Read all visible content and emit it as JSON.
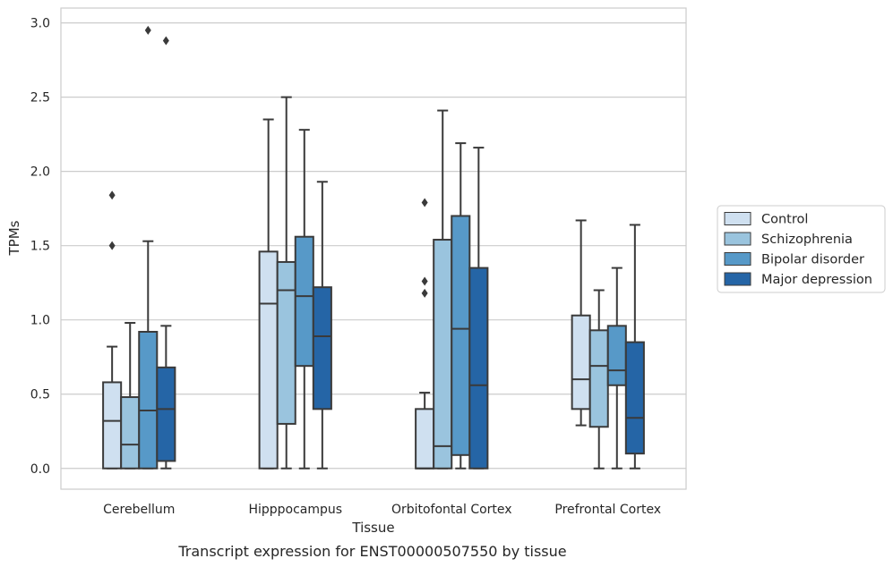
{
  "chart_data": {
    "type": "box",
    "xlabel": "Tissue",
    "ylabel": "TPMs",
    "caption": "Transcript expression for ENST00000507550 by tissue",
    "ylim": [
      -0.14,
      3.1
    ],
    "yticks": [
      "0.0",
      "0.5",
      "1.0",
      "1.5",
      "2.0",
      "2.5",
      "3.0"
    ],
    "grid": "horizontal",
    "legend_position": "right",
    "categories": [
      "Cerebellum",
      "Hipppocampus",
      "Orbitofontal Cortex",
      "Prefrontal Cortex"
    ],
    "series": [
      {
        "name": "Control",
        "color": "#cfe0f0",
        "boxes": [
          {
            "min": 0.0,
            "q1": 0.0,
            "median": 0.32,
            "q3": 0.58,
            "max": 0.82,
            "outliers": [
              1.5,
              1.84
            ]
          },
          {
            "min": 0.0,
            "q1": 0.0,
            "median": 1.11,
            "q3": 1.46,
            "max": 2.35,
            "outliers": []
          },
          {
            "min": 0.0,
            "q1": 0.0,
            "median": 0.0,
            "q3": 0.4,
            "max": 0.51,
            "outliers": [
              1.18,
              1.26,
              1.79
            ]
          },
          {
            "min": 0.29,
            "q1": 0.4,
            "median": 0.6,
            "q3": 1.03,
            "max": 1.67,
            "outliers": []
          }
        ]
      },
      {
        "name": "Schizophrenia",
        "color": "#9ac4de",
        "boxes": [
          {
            "min": 0.0,
            "q1": 0.0,
            "median": 0.16,
            "q3": 0.48,
            "max": 0.98,
            "outliers": []
          },
          {
            "min": 0.0,
            "q1": 0.3,
            "median": 1.2,
            "q3": 1.39,
            "max": 2.5,
            "outliers": []
          },
          {
            "min": 0.0,
            "q1": 0.0,
            "median": 0.15,
            "q3": 1.54,
            "max": 2.41,
            "outliers": []
          },
          {
            "min": 0.0,
            "q1": 0.28,
            "median": 0.69,
            "q3": 0.93,
            "max": 1.2,
            "outliers": []
          }
        ]
      },
      {
        "name": "Bipolar disorder",
        "color": "#5799c8",
        "boxes": [
          {
            "min": 0.0,
            "q1": 0.0,
            "median": 0.39,
            "q3": 0.92,
            "max": 1.53,
            "outliers": [
              2.95
            ]
          },
          {
            "min": 0.0,
            "q1": 0.69,
            "median": 1.16,
            "q3": 1.56,
            "max": 2.28,
            "outliers": []
          },
          {
            "min": 0.0,
            "q1": 0.09,
            "median": 0.94,
            "q3": 1.7,
            "max": 2.19,
            "outliers": []
          },
          {
            "min": 0.0,
            "q1": 0.56,
            "median": 0.66,
            "q3": 0.96,
            "max": 1.35,
            "outliers": []
          }
        ]
      },
      {
        "name": "Major depression",
        "color": "#2565a6",
        "boxes": [
          {
            "min": 0.0,
            "q1": 0.05,
            "median": 0.4,
            "q3": 0.68,
            "max": 0.96,
            "outliers": [
              2.88
            ]
          },
          {
            "min": 0.0,
            "q1": 0.4,
            "median": 0.89,
            "q3": 1.22,
            "max": 1.93,
            "outliers": []
          },
          {
            "min": 0.0,
            "q1": 0.0,
            "median": 0.56,
            "q3": 1.35,
            "max": 2.16,
            "outliers": []
          },
          {
            "min": 0.0,
            "q1": 0.1,
            "median": 0.34,
            "q3": 0.85,
            "max": 1.64,
            "outliers": []
          }
        ]
      }
    ]
  }
}
